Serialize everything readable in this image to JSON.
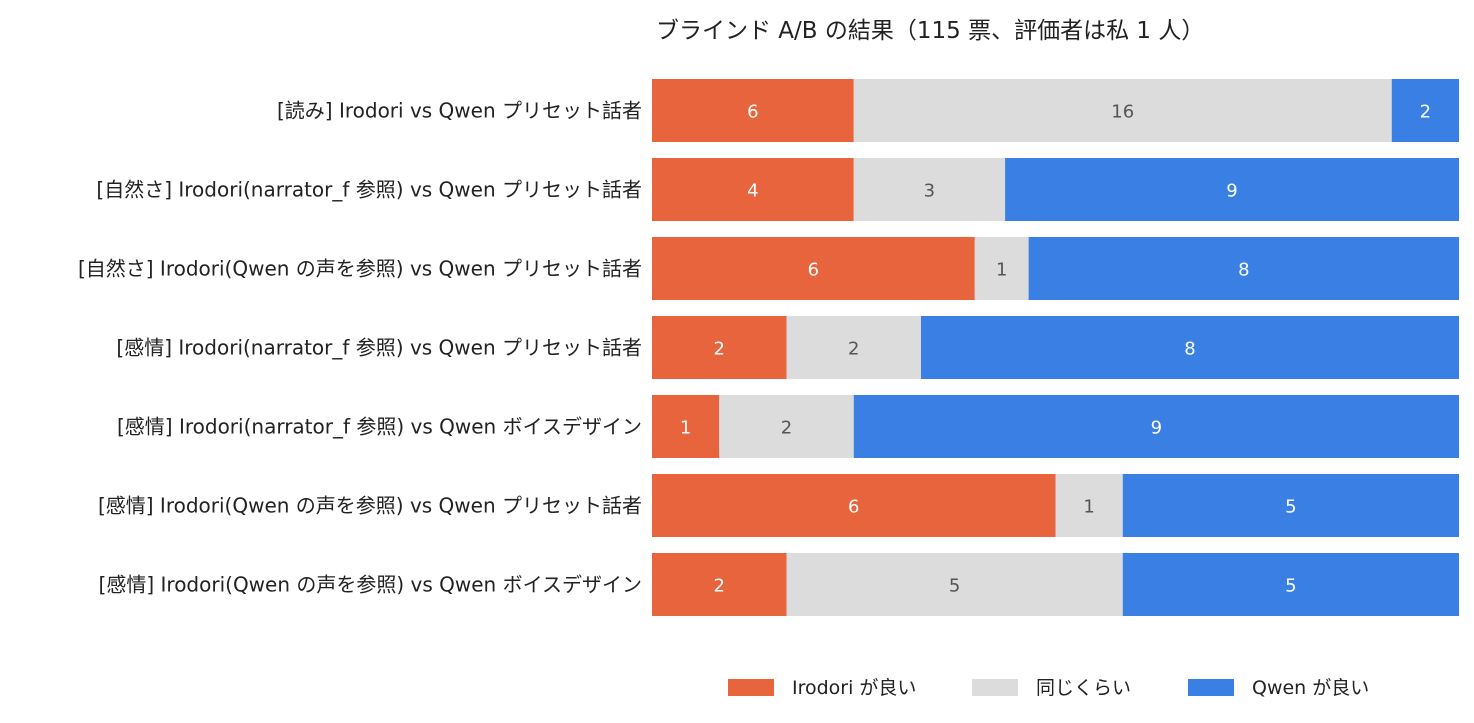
{
  "chart_data": {
    "type": "bar",
    "orientation": "horizontal",
    "stacked": true,
    "normalized": true,
    "title": "ブラインド A/B の結果（115 票、評価者は私 1 人）",
    "categories": [
      "[読み] Irodori vs Qwen プリセット話者",
      "[自然さ] Irodori(narrator_f 参照) vs Qwen プリセット話者",
      "[自然さ] Irodori(Qwen の声を参照) vs Qwen プリセット話者",
      "[感情] Irodori(narrator_f 参照) vs Qwen プリセット話者",
      "[感情] Irodori(narrator_f 参照) vs Qwen ボイスデザイン",
      "[感情] Irodori(Qwen の声を参照) vs Qwen プリセット話者",
      "[感情] Irodori(Qwen の声を参照) vs Qwen ボイスデザイン"
    ],
    "series": [
      {
        "name": "Irodori が良い",
        "color": "#e8643c",
        "label_color": "#ffffff",
        "values": [
          6,
          4,
          6,
          2,
          1,
          6,
          2
        ]
      },
      {
        "name": "同じくらい",
        "color": "#dcdcdc",
        "label_color": "#555555",
        "values": [
          16,
          3,
          1,
          2,
          2,
          1,
          5
        ]
      },
      {
        "name": "Qwen が良い",
        "color": "#3a80e4",
        "label_color": "#ffffff",
        "values": [
          2,
          9,
          8,
          8,
          9,
          5,
          5
        ]
      }
    ],
    "grid": false,
    "legend_position": "bottom"
  }
}
